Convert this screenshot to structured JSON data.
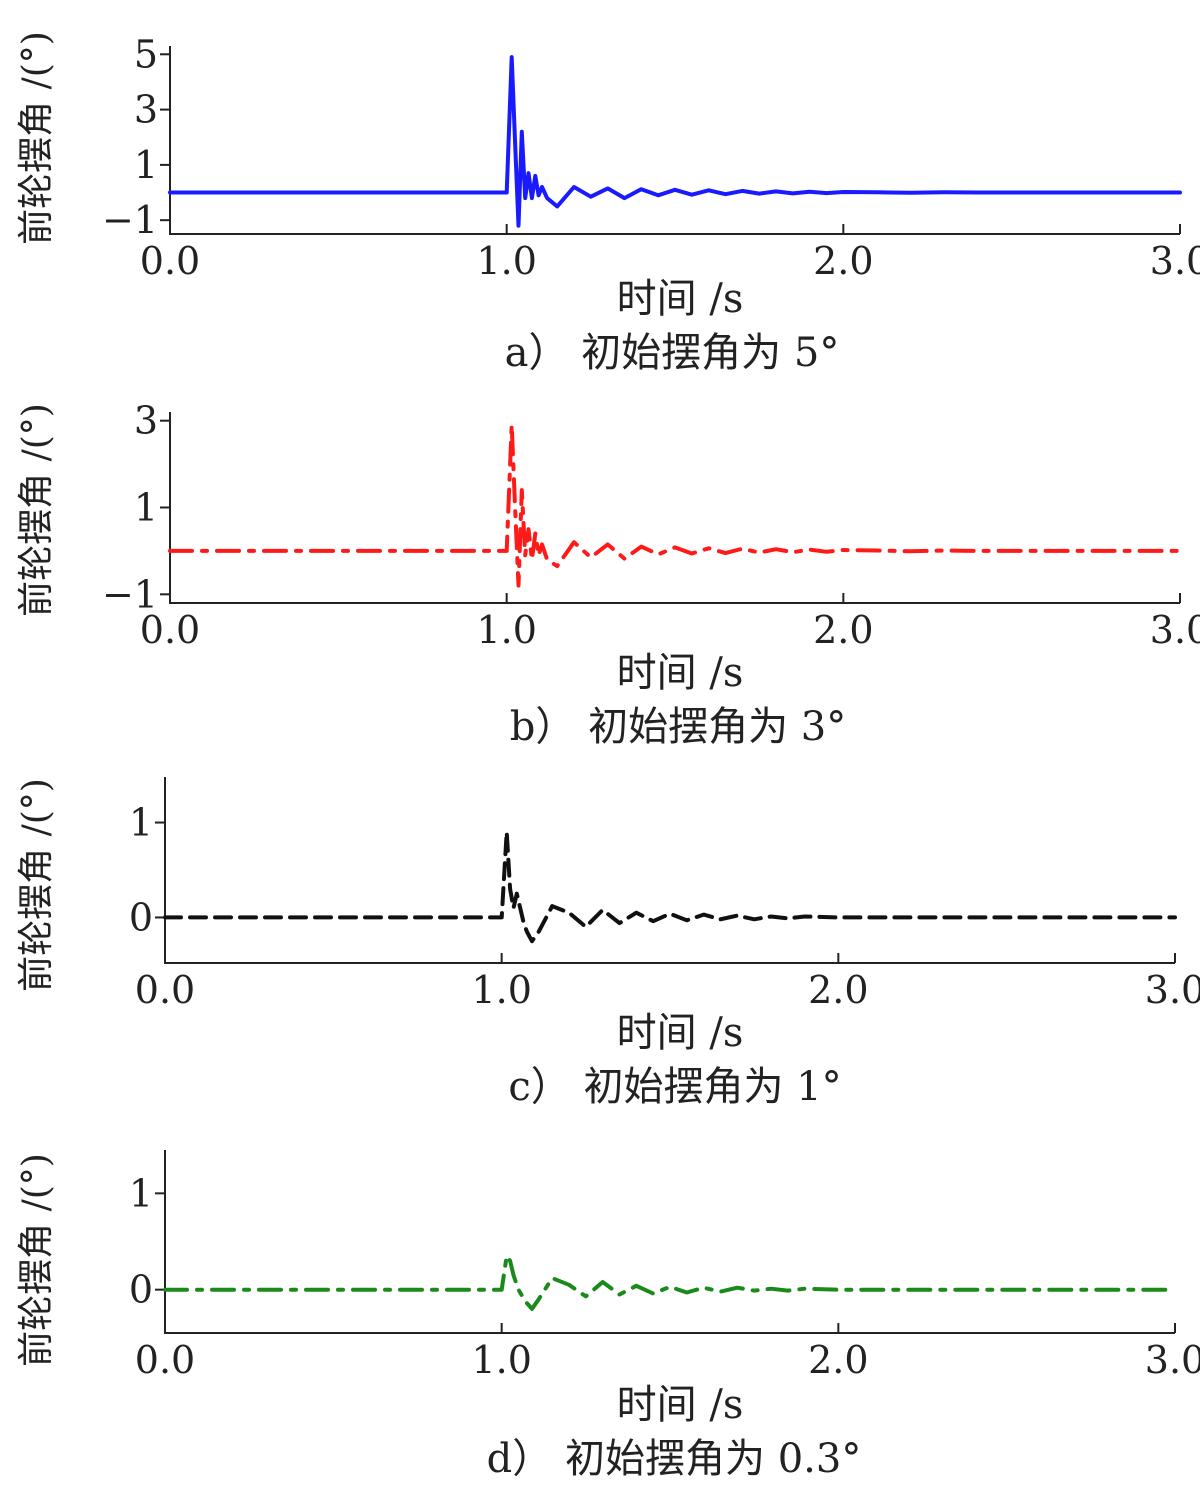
{
  "chart_data": [
    {
      "type": "line",
      "caption": "a） 初始摆角为 5°",
      "xlabel": "时间 /s",
      "ylabel": "前轮摆角 /(°)",
      "xlim": [
        0,
        3
      ],
      "ylim": [
        -1.5,
        5.3
      ],
      "xticks": [
        0,
        1,
        2,
        3
      ],
      "xtick_labels": [
        "0.0",
        "1.0",
        "2.0",
        "3.0"
      ],
      "yticks": [
        -1,
        1,
        3,
        5
      ],
      "ytick_labels": [
        "−1",
        "1",
        "3",
        "5"
      ],
      "grid": false,
      "series": [
        {
          "color": "#1a1aff",
          "line_style": "solid",
          "amplitude": 5,
          "x": [
            0,
            0.98,
            1.0,
            1.015,
            1.025,
            1.035,
            1.045,
            1.055,
            1.065,
            1.075,
            1.085,
            1.095,
            1.105,
            1.12,
            1.15,
            1.2,
            1.25,
            1.3,
            1.35,
            1.4,
            1.45,
            1.5,
            1.55,
            1.6,
            1.65,
            1.7,
            1.75,
            1.8,
            1.85,
            1.9,
            1.95,
            2.0,
            2.1,
            2.2,
            2.3,
            2.4,
            2.5,
            2.6,
            2.7,
            2.8,
            3.0
          ],
          "y": [
            0,
            0,
            0,
            4.9,
            1.8,
            -1.2,
            2.2,
            -0.2,
            0.7,
            -0.2,
            0.6,
            -0.1,
            0.2,
            -0.2,
            -0.5,
            0.2,
            -0.15,
            0.15,
            -0.2,
            0.12,
            -0.1,
            0.1,
            -0.08,
            0.08,
            -0.06,
            0.06,
            -0.04,
            0.04,
            -0.03,
            0.03,
            -0.02,
            0.02,
            0.01,
            -0.01,
            0.01,
            0,
            0,
            0,
            0,
            0,
            0
          ]
        }
      ]
    },
    {
      "type": "line",
      "caption": "b） 初始摆角为 3°",
      "xlabel": "时间 /s",
      "ylabel": "前轮摆角 /(°)",
      "xlim": [
        0,
        3
      ],
      "ylim": [
        -1.2,
        3.2
      ],
      "xticks": [
        0,
        1,
        2,
        3
      ],
      "xtick_labels": [
        "0.0",
        "1.0",
        "2.0",
        "3.0"
      ],
      "yticks": [
        -1,
        1,
        3
      ],
      "ytick_labels": [
        "−1",
        "1",
        "3"
      ],
      "grid": false,
      "series": [
        {
          "color": "#ff1a1a",
          "line_style": "dash-dot",
          "amplitude": 3,
          "x": [
            0,
            0.98,
            1.0,
            1.015,
            1.025,
            1.035,
            1.045,
            1.055,
            1.065,
            1.075,
            1.085,
            1.095,
            1.105,
            1.12,
            1.15,
            1.2,
            1.25,
            1.3,
            1.35,
            1.4,
            1.45,
            1.5,
            1.55,
            1.6,
            1.65,
            1.7,
            1.75,
            1.8,
            1.85,
            1.9,
            1.95,
            2.0,
            2.1,
            2.2,
            2.3,
            2.4,
            2.5,
            2.6,
            2.7,
            2.8,
            3.0
          ],
          "y": [
            0,
            0,
            0,
            2.9,
            1.0,
            -0.8,
            1.4,
            -0.1,
            0.5,
            -0.2,
            0.4,
            -0.1,
            0.15,
            -0.2,
            -0.35,
            0.2,
            -0.15,
            0.15,
            -0.18,
            0.1,
            -0.08,
            0.08,
            -0.06,
            0.06,
            -0.05,
            0.05,
            -0.04,
            0.04,
            -0.03,
            0.03,
            -0.02,
            0.02,
            0.01,
            -0.01,
            0.01,
            0,
            0,
            0,
            0,
            0,
            0
          ]
        }
      ]
    },
    {
      "type": "line",
      "caption": "c） 初始摆角为 1°",
      "xlabel": "时间 /s",
      "ylabel": "前轮摆角 /(°)",
      "xlim": [
        0,
        3
      ],
      "ylim": [
        -0.48,
        1.48
      ],
      "xticks": [
        0,
        1,
        2,
        3
      ],
      "xtick_labels": [
        "0.0",
        "1.0",
        "2.0",
        "3.0"
      ],
      "yticks": [
        0,
        1
      ],
      "ytick_labels": [
        "0",
        "1"
      ],
      "grid": false,
      "series": [
        {
          "color": "#111111",
          "line_style": "dashed",
          "amplitude": 1,
          "x": [
            0,
            0.98,
            1.0,
            1.015,
            1.025,
            1.035,
            1.045,
            1.055,
            1.065,
            1.075,
            1.09,
            1.11,
            1.15,
            1.2,
            1.25,
            1.3,
            1.35,
            1.4,
            1.45,
            1.5,
            1.55,
            1.6,
            1.65,
            1.7,
            1.75,
            1.8,
            1.85,
            1.9,
            2.0,
            2.2,
            2.4,
            2.6,
            2.8,
            3.0
          ],
          "y": [
            0,
            0,
            0,
            0.9,
            0.3,
            0.1,
            0.25,
            0.1,
            -0.05,
            -0.15,
            -0.25,
            -0.15,
            0.12,
            0.05,
            -0.1,
            0.08,
            -0.06,
            0.05,
            -0.04,
            0.04,
            -0.03,
            0.03,
            -0.02,
            0.02,
            -0.02,
            0.01,
            -0.01,
            0.01,
            0,
            0,
            0,
            0,
            0,
            0
          ]
        }
      ]
    },
    {
      "type": "line",
      "caption": "d） 初始摆角为 0.3°",
      "xlabel": "时间 /s",
      "ylabel": "前轮摆角 /(°)",
      "xlim": [
        0,
        3
      ],
      "ylim": [
        -0.45,
        1.45
      ],
      "xticks": [
        0,
        1,
        2,
        3
      ],
      "xtick_labels": [
        "0.0",
        "1.0",
        "2.0",
        "3.0"
      ],
      "yticks": [
        0,
        1
      ],
      "ytick_labels": [
        "0",
        "1"
      ],
      "grid": false,
      "series": [
        {
          "color": "#1a8a1a",
          "line_style": "dash-dot",
          "amplitude": 0.3,
          "x": [
            0,
            0.98,
            1.0,
            1.015,
            1.025,
            1.035,
            1.05,
            1.07,
            1.09,
            1.11,
            1.15,
            1.2,
            1.25,
            1.3,
            1.35,
            1.4,
            1.45,
            1.5,
            1.55,
            1.6,
            1.65,
            1.7,
            1.75,
            1.8,
            1.85,
            1.9,
            2.0,
            2.2,
            2.4,
            2.6,
            2.8,
            3.0
          ],
          "y": [
            0,
            0,
            0,
            0.35,
            0.3,
            0.15,
            0.0,
            -0.12,
            -0.2,
            -0.1,
            0.12,
            0.05,
            -0.07,
            0.08,
            -0.05,
            0.04,
            -0.04,
            0.03,
            -0.03,
            0.02,
            -0.02,
            0.02,
            -0.01,
            0.01,
            -0.01,
            0.01,
            0,
            0,
            0,
            0,
            0,
            0
          ]
        }
      ]
    }
  ]
}
